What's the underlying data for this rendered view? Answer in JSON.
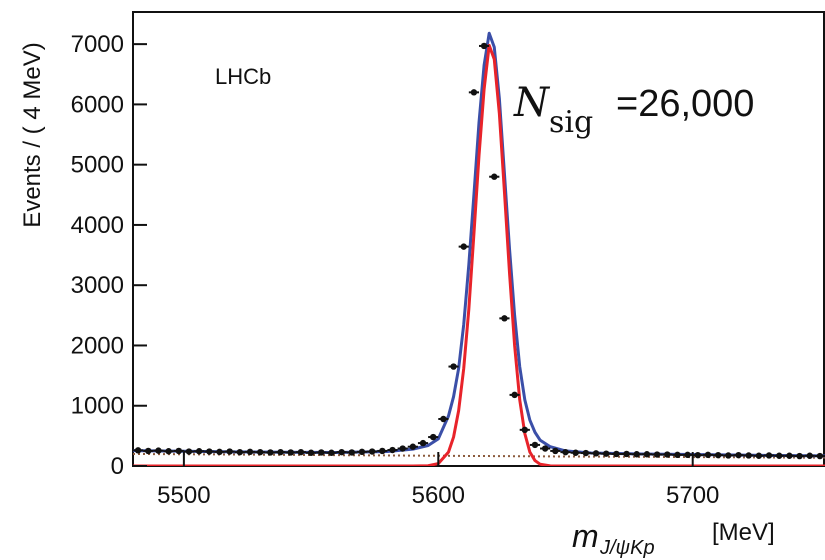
{
  "chart_data": {
    "type": "histogram_fit",
    "ylabel": "Events / ( 4 MeV)",
    "xlabel_main": "m",
    "xlabel_sub": "J/ψKp",
    "xlabel_unit": "[MeV]",
    "experiment_label": "LHCb",
    "annotation": {
      "symbol": "N",
      "sub": "sig",
      "text": "=26,000"
    },
    "xlim": [
      5480,
      5752
    ],
    "ylim": [
      0,
      7500
    ],
    "xticks": [
      5500,
      5600,
      5700
    ],
    "yticks": [
      0,
      1000,
      2000,
      3000,
      4000,
      5000,
      6000,
      7000
    ],
    "series": [
      {
        "style": "points",
        "color": "#111111",
        "x": [
          5482,
          5486,
          5490,
          5494,
          5498,
          5502,
          5506,
          5510,
          5514,
          5518,
          5522,
          5526,
          5530,
          5534,
          5538,
          5542,
          5546,
          5550,
          5554,
          5558,
          5562,
          5566,
          5570,
          5574,
          5578,
          5582,
          5586,
          5590,
          5594,
          5598,
          5602,
          5606,
          5610,
          5614,
          5618,
          5622,
          5626,
          5630,
          5634,
          5638,
          5642,
          5646,
          5650,
          5654,
          5658,
          5662,
          5666,
          5670,
          5674,
          5678,
          5682,
          5686,
          5690,
          5694,
          5698,
          5702,
          5706,
          5710,
          5714,
          5718,
          5722,
          5726,
          5730,
          5734,
          5738,
          5742,
          5746,
          5750
        ],
        "values": [
          260,
          250,
          255,
          245,
          250,
          240,
          245,
          240,
          235,
          240,
          230,
          235,
          230,
          225,
          230,
          225,
          230,
          220,
          225,
          220,
          230,
          225,
          235,
          240,
          250,
          265,
          290,
          320,
          380,
          480,
          780,
          1650,
          3640,
          6200,
          6970,
          4800,
          2450,
          1180,
          600,
          350,
          290,
          250,
          230,
          220,
          215,
          210,
          205,
          200,
          200,
          195,
          195,
          190,
          190,
          185,
          185,
          180,
          185,
          180,
          175,
          180,
          175,
          170,
          175,
          170,
          170,
          165,
          170,
          165
        ]
      },
      {
        "style": "dotted",
        "color": "#8b5a3c",
        "x": [
          5480,
          5500,
          5520,
          5540,
          5560,
          5580,
          5590,
          5596,
          5600,
          5604,
          5606,
          5608,
          5610,
          5612,
          5614,
          5616,
          5618,
          5620,
          5622,
          5624,
          5626,
          5628,
          5630,
          5632,
          5634,
          5636,
          5638,
          5640,
          5644,
          5650,
          5660,
          5680,
          5700,
          5720,
          5740,
          5752
        ],
        "values": [
          200,
          195,
          190,
          185,
          180,
          175,
          172,
          170,
          170,
          169,
          168,
          168,
          167,
          167,
          166,
          166,
          165,
          165,
          164,
          164,
          163,
          163,
          162,
          162,
          161,
          161,
          160,
          160,
          159,
          158,
          156,
          152,
          148,
          144,
          140,
          138
        ]
      },
      {
        "style": "line",
        "color": "#3b4fa8",
        "x": [
          5480,
          5500,
          5520,
          5540,
          5560,
          5580,
          5590,
          5596,
          5600,
          5604,
          5606,
          5608,
          5610,
          5612,
          5614,
          5616,
          5618,
          5620,
          5622,
          5624,
          5626,
          5628,
          5630,
          5632,
          5634,
          5636,
          5638,
          5640,
          5644,
          5650,
          5660,
          5680,
          5700,
          5720,
          5740,
          5752
        ],
        "values": [
          255,
          245,
          235,
          228,
          225,
          240,
          280,
          340,
          450,
          830,
          1150,
          1620,
          2350,
          3340,
          4500,
          5700,
          6650,
          7180,
          6950,
          6100,
          4850,
          3600,
          2500,
          1650,
          1100,
          760,
          560,
          430,
          320,
          250,
          215,
          200,
          190,
          180,
          172,
          168
        ]
      },
      {
        "style": "line",
        "color": "#e8232a",
        "x": [
          5480,
          5500,
          5520,
          5540,
          5560,
          5580,
          5590,
          5596,
          5600,
          5604,
          5606,
          5608,
          5610,
          5612,
          5614,
          5616,
          5618,
          5620,
          5622,
          5624,
          5626,
          5628,
          5630,
          5632,
          5634,
          5636,
          5638,
          5640,
          5644,
          5650,
          5660,
          5680,
          5700,
          5720,
          5740,
          5752
        ],
        "values": [
          0,
          0,
          0,
          0,
          0,
          0,
          0,
          5,
          40,
          230,
          480,
          920,
          1620,
          2600,
          3850,
          5150,
          6250,
          6980,
          6750,
          5850,
          4550,
          3200,
          2000,
          1100,
          540,
          230,
          90,
          30,
          3,
          0,
          0,
          0,
          0,
          0,
          0,
          0
        ]
      }
    ]
  }
}
